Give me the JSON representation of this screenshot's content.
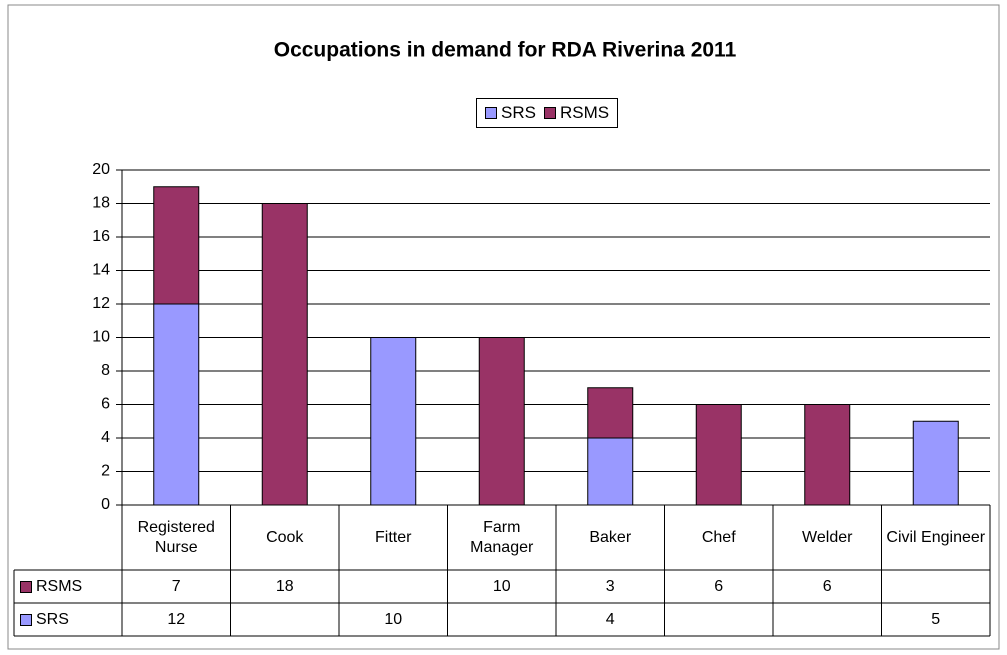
{
  "chart_data": {
    "type": "bar",
    "stacked": true,
    "title": "Occupations in demand for RDA Riverina 2011",
    "categories": [
      "Registered Nurse",
      "Cook",
      "Fitter",
      "Farm Manager",
      "Baker",
      "Chef",
      "Welder",
      "Civil Engineer"
    ],
    "series": [
      {
        "name": "SRS",
        "color": "#9999ff",
        "values": [
          12,
          null,
          10,
          null,
          4,
          null,
          null,
          5
        ]
      },
      {
        "name": "RSMS",
        "color": "#993366",
        "values": [
          7,
          18,
          null,
          10,
          3,
          6,
          6,
          null
        ]
      }
    ],
    "ylim": [
      0,
      20
    ],
    "yticks": [
      0,
      2,
      4,
      6,
      8,
      10,
      12,
      14,
      16,
      18,
      20
    ],
    "grid": true,
    "legend": "top",
    "data_table": true
  }
}
